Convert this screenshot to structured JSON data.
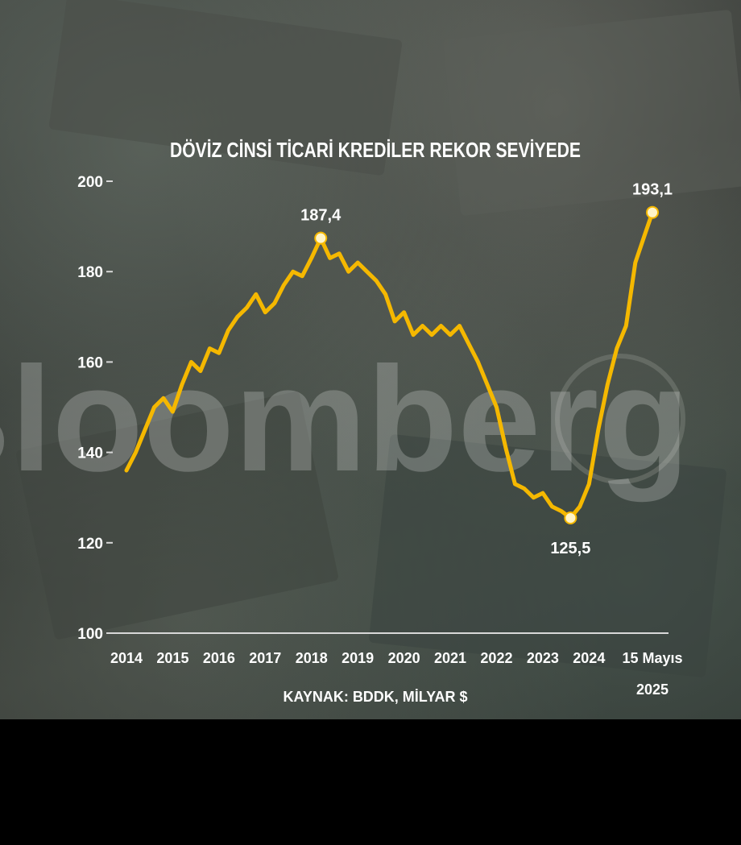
{
  "colors": {
    "line": "#f5b800",
    "text": "#ffffff",
    "background": "#2f3330",
    "bottom_band": "#000000"
  },
  "watermark": {
    "text": "Bloomberg"
  },
  "chart_data": {
    "type": "line",
    "title": "DÖVİZ CİNSİ TİCARİ KREDİLER REKOR SEVİYEDE",
    "source": "KAYNAK: BDDK, MİLYAR $",
    "ylim": [
      100,
      200
    ],
    "yticks": [
      200,
      180,
      160,
      140,
      120,
      100
    ],
    "xlim": [
      2014,
      2025.37
    ],
    "xticks": [
      {
        "value": 2014,
        "label": "2014"
      },
      {
        "value": 2015,
        "label": "2015"
      },
      {
        "value": 2016,
        "label": "2016"
      },
      {
        "value": 2017,
        "label": "2017"
      },
      {
        "value": 2018,
        "label": "2018"
      },
      {
        "value": 2019,
        "label": "2019"
      },
      {
        "value": 2020,
        "label": "2020"
      },
      {
        "value": 2021,
        "label": "2021"
      },
      {
        "value": 2022,
        "label": "2022"
      },
      {
        "value": 2023,
        "label": "2023"
      },
      {
        "value": 2024,
        "label": "2024"
      },
      {
        "value": 2025.37,
        "label": "15 Mayıs",
        "label2": "2025"
      }
    ],
    "grid": false,
    "series": [
      {
        "x": [
          2014.0,
          2014.2,
          2014.4,
          2014.6,
          2014.8,
          2015.0,
          2015.2,
          2015.4,
          2015.6,
          2015.8,
          2016.0,
          2016.2,
          2016.4,
          2016.6,
          2016.8,
          2017.0,
          2017.2,
          2017.4,
          2017.6,
          2017.8,
          2018.0,
          2018.2,
          2018.4,
          2018.6,
          2018.8,
          2019.0,
          2019.2,
          2019.4,
          2019.6,
          2019.8,
          2020.0,
          2020.2,
          2020.4,
          2020.6,
          2020.8,
          2021.0,
          2021.2,
          2021.4,
          2021.6,
          2021.8,
          2022.0,
          2022.2,
          2022.4,
          2022.6,
          2022.8,
          2023.0,
          2023.2,
          2023.4,
          2023.6,
          2023.8,
          2024.0,
          2024.2,
          2024.4,
          2024.6,
          2024.8,
          2025.0,
          2025.2,
          2025.37
        ],
        "values": [
          136,
          140,
          145,
          150,
          152,
          149,
          155,
          160,
          158,
          163,
          162,
          167,
          170,
          172,
          175,
          171,
          173,
          177,
          180,
          179,
          183,
          187.4,
          183,
          184,
          180,
          182,
          180,
          178,
          175,
          169,
          171,
          166,
          168,
          166,
          168,
          166,
          168,
          164,
          160,
          155,
          150,
          141,
          133,
          132,
          130,
          131,
          128,
          127,
          125.5,
          128,
          133,
          145,
          155,
          163,
          168,
          182,
          188,
          193.1
        ]
      }
    ],
    "annotations": [
      {
        "label": "187,4",
        "x": 2018.2,
        "y": 187.4
      },
      {
        "label": "125,5",
        "x": 2023.6,
        "y": 125.5
      },
      {
        "label": "193,1",
        "x": 2025.37,
        "y": 193.1
      }
    ]
  }
}
